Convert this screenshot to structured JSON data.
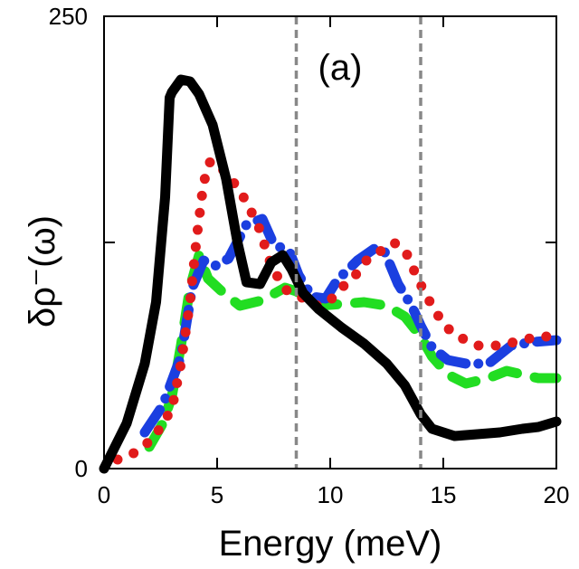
{
  "chart_data": {
    "type": "line",
    "title": "",
    "panel_label": "(a)",
    "xlabel": "Energy (meV)",
    "ylabel": "δρ⁻(ω)",
    "xlim": [
      0,
      20
    ],
    "ylim": [
      0,
      250
    ],
    "x_ticks": [
      0,
      5,
      10,
      15,
      20
    ],
    "y_ticks": [
      0,
      250
    ],
    "minor_y_ticks": [
      125
    ],
    "vertical_reference_lines": [
      8.5,
      14
    ],
    "series": [
      {
        "name": "black-solid",
        "color": "#000000",
        "style": "solid",
        "points": [
          [
            0,
            0
          ],
          [
            1,
            25
          ],
          [
            1.8,
            58
          ],
          [
            2.3,
            92
          ],
          [
            2.7,
            150
          ],
          [
            2.9,
            205
          ],
          [
            3.0,
            208
          ],
          [
            3.4,
            215
          ],
          [
            3.8,
            214
          ],
          [
            4.2,
            207
          ],
          [
            4.8,
            190
          ],
          [
            5.4,
            160
          ],
          [
            5.9,
            125
          ],
          [
            6.3,
            103
          ],
          [
            6.9,
            102
          ],
          [
            7.4,
            114
          ],
          [
            7.9,
            118
          ],
          [
            8.3,
            110
          ],
          [
            8.8,
            97
          ],
          [
            9.5,
            88
          ],
          [
            10.5,
            78
          ],
          [
            11.5,
            69
          ],
          [
            12.5,
            58
          ],
          [
            13.3,
            46
          ],
          [
            14.0,
            30
          ],
          [
            14.5,
            22
          ],
          [
            15.0,
            20
          ],
          [
            15.5,
            18
          ],
          [
            16.5,
            19
          ],
          [
            17.5,
            20
          ],
          [
            18.5,
            22
          ],
          [
            19.2,
            23
          ],
          [
            20,
            26
          ]
        ]
      },
      {
        "name": "red-dotted",
        "color": "#e11b1b",
        "style": "dotted",
        "points": [
          [
            0.6,
            5
          ],
          [
            1.4,
            9
          ],
          [
            2.2,
            17
          ],
          [
            3.0,
            33
          ],
          [
            3.4,
            58
          ],
          [
            3.8,
            92
          ],
          [
            4.1,
            128
          ],
          [
            4.4,
            158
          ],
          [
            4.7,
            170
          ],
          [
            5.2,
            166
          ],
          [
            6.0,
            154
          ],
          [
            6.8,
            135
          ],
          [
            7.4,
            112
          ],
          [
            8.0,
            99
          ],
          [
            8.6,
            96
          ],
          [
            9.1,
            91
          ],
          [
            9.5,
            90
          ],
          [
            10.0,
            93
          ],
          [
            10.5,
            100
          ],
          [
            11.0,
            105
          ],
          [
            11.6,
            115
          ],
          [
            12.2,
            120
          ],
          [
            12.8,
            125
          ],
          [
            13.3,
            121
          ],
          [
            13.9,
            104
          ],
          [
            14.5,
            90
          ],
          [
            15.0,
            80
          ],
          [
            15.5,
            74
          ],
          [
            16.5,
            68
          ],
          [
            17.5,
            68
          ],
          [
            18.5,
            71
          ],
          [
            19.2,
            73
          ],
          [
            20,
            73
          ]
        ]
      },
      {
        "name": "blue-dashdot",
        "color": "#1b3fe0",
        "style": "dashdot",
        "points": [
          [
            1.8,
            20
          ],
          [
            2.6,
            35
          ],
          [
            3.4,
            62
          ],
          [
            3.9,
            100
          ],
          [
            4.4,
            115
          ],
          [
            4.9,
            112
          ],
          [
            5.5,
            116
          ],
          [
            6.3,
            135
          ],
          [
            7.0,
            138
          ],
          [
            7.5,
            124
          ],
          [
            8.2,
            120
          ],
          [
            8.6,
            107
          ],
          [
            9.2,
            95
          ],
          [
            9.8,
            94
          ],
          [
            10.3,
            104
          ],
          [
            11.2,
            115
          ],
          [
            12.0,
            122
          ],
          [
            12.4,
            120
          ],
          [
            13.0,
            102
          ],
          [
            13.6,
            90
          ],
          [
            14.0,
            79
          ],
          [
            14.5,
            67
          ],
          [
            15.2,
            60
          ],
          [
            16.0,
            58
          ],
          [
            17.0,
            58
          ],
          [
            18.0,
            68
          ],
          [
            19.0,
            70
          ],
          [
            20,
            71
          ]
        ]
      },
      {
        "name": "green-dashed",
        "color": "#22dd22",
        "style": "dashed",
        "points": [
          [
            2.0,
            12
          ],
          [
            2.6,
            25
          ],
          [
            3.0,
            40
          ],
          [
            3.4,
            68
          ],
          [
            3.8,
            100
          ],
          [
            4.2,
            118
          ],
          [
            4.6,
            105
          ],
          [
            5.2,
            98
          ],
          [
            6.0,
            90
          ],
          [
            7.0,
            93
          ],
          [
            8.0,
            100
          ],
          [
            8.5,
            98
          ],
          [
            9.5,
            90
          ],
          [
            10.5,
            91
          ],
          [
            11.5,
            92
          ],
          [
            12.5,
            90
          ],
          [
            13.3,
            84
          ],
          [
            14.0,
            73
          ],
          [
            14.5,
            62
          ],
          [
            15.2,
            52
          ],
          [
            16.0,
            47
          ],
          [
            17.0,
            50
          ],
          [
            17.8,
            54
          ],
          [
            18.5,
            52
          ],
          [
            19.2,
            50
          ],
          [
            20,
            50
          ]
        ]
      }
    ]
  }
}
